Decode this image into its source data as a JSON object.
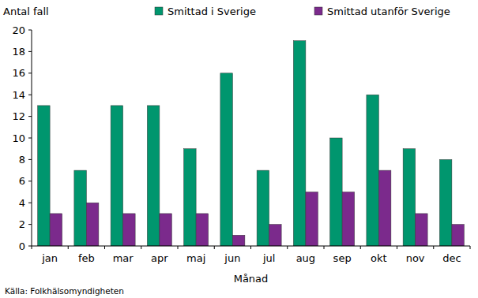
{
  "chart_data": {
    "type": "bar",
    "y_label": "Antal fall",
    "x_label": "Månad",
    "source": "Källa: Folkhälsomyndigheten",
    "categories": [
      "jan",
      "feb",
      "mar",
      "apr",
      "maj",
      "jun",
      "jul",
      "aug",
      "sep",
      "okt",
      "nov",
      "dec"
    ],
    "series": [
      {
        "name": "Smittad i Sverige",
        "color": "#00966e",
        "values": [
          13,
          7,
          13,
          13,
          9,
          16,
          7,
          19,
          10,
          14,
          9,
          8
        ]
      },
      {
        "name": "Smittad utanför Sverige",
        "color": "#7b2a8c",
        "values": [
          3,
          4,
          3,
          3,
          3,
          1,
          2,
          5,
          5,
          7,
          3,
          2
        ]
      }
    ],
    "ylim": [
      0,
      20
    ],
    "yticks": [
      0,
      2,
      4,
      6,
      8,
      10,
      12,
      14,
      16,
      18,
      20
    ],
    "grid": false,
    "legend": "top"
  }
}
